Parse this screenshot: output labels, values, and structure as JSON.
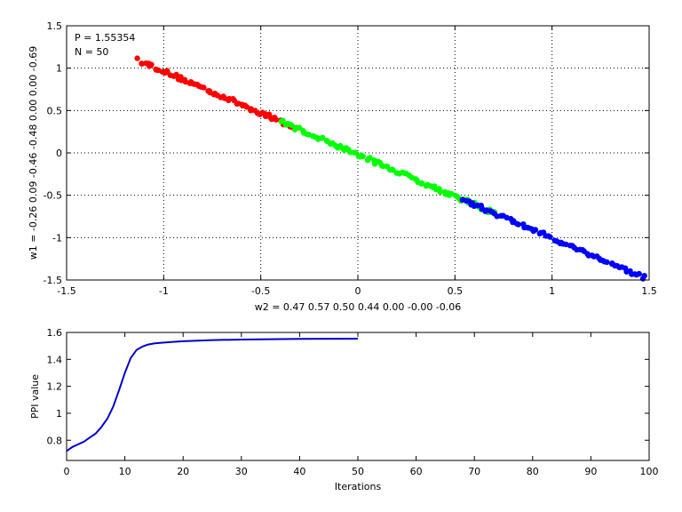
{
  "chart_data": [
    {
      "type": "scatter",
      "annotation_lines": [
        "P = 1.55354",
        "N = 50"
      ],
      "xlabel": "w2 = 0.47  0.57  0.50  0.44  0.00  -0.00  -0.06",
      "ylabel": "w1 = -0.26  0.09  -0.46  -0.48  0.00  0.00  -0.69",
      "xlim": [
        -1.5,
        1.5
      ],
      "ylim": [
        -1.5,
        1.5
      ],
      "xticks": [
        -1.5,
        -1,
        -0.5,
        0,
        0.5,
        1,
        1.5
      ],
      "xtick_labels": [
        "-1.5",
        "-1",
        "-0.5",
        "0",
        "0.5",
        "1",
        "1.5"
      ],
      "yticks": [
        -1.5,
        -1,
        -0.5,
        0,
        0.5,
        1,
        1.5
      ],
      "ytick_labels": [
        "-1.5",
        "-1",
        "-0.5",
        "0",
        "0.5",
        "1",
        "1.5"
      ],
      "grid": "dotted",
      "series": [
        {
          "color": "#ff0000",
          "x_range": [
            -1.13,
            -0.32
          ],
          "intercept": -0.02,
          "slope": -0.985,
          "count": 70
        },
        {
          "color": "#00ff00",
          "x_range": [
            -0.4,
            0.7
          ],
          "intercept": -0.02,
          "slope": -0.985,
          "count": 95
        },
        {
          "color": "#0000ff",
          "x_range": [
            0.54,
            1.48
          ],
          "intercept": -0.02,
          "slope": -0.985,
          "count": 75
        }
      ]
    },
    {
      "type": "line",
      "xlabel": "Iterations",
      "ylabel": "PPI value",
      "xlim": [
        0,
        100
      ],
      "ylim": [
        0.65,
        1.6
      ],
      "xticks": [
        0,
        10,
        20,
        30,
        40,
        50,
        60,
        70,
        80,
        90,
        100
      ],
      "xtick_labels": [
        "0",
        "10",
        "20",
        "30",
        "40",
        "50",
        "60",
        "70",
        "80",
        "90",
        "100"
      ],
      "yticks": [
        0.8,
        1.0,
        1.2,
        1.4,
        1.6
      ],
      "ytick_labels": [
        "0.8",
        "1",
        "1.2",
        "1.4",
        "1.6"
      ],
      "grid": "none",
      "color": "#0000cc",
      "series": [
        {
          "x": [
            0,
            1,
            2,
            3,
            4,
            5,
            6,
            7,
            8,
            9,
            10,
            11,
            12,
            13,
            14,
            15,
            16,
            17,
            18,
            20,
            25,
            30,
            35,
            40,
            45,
            50
          ],
          "y": [
            0.72,
            0.75,
            0.77,
            0.79,
            0.82,
            0.85,
            0.9,
            0.96,
            1.05,
            1.17,
            1.3,
            1.41,
            1.47,
            1.495,
            1.51,
            1.518,
            1.522,
            1.526,
            1.529,
            1.535,
            1.543,
            1.547,
            1.55,
            1.552,
            1.553,
            1.5535
          ]
        }
      ]
    }
  ]
}
